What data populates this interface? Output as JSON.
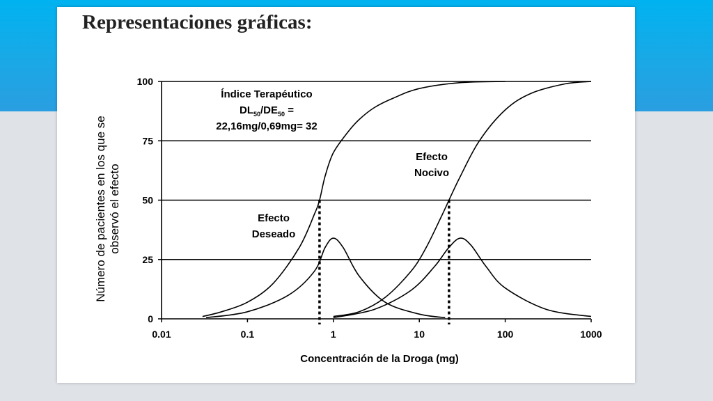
{
  "slide": {
    "title": "Representaciones gráficas:"
  },
  "colors": {
    "top_band": "#1aa8e6",
    "slide_background": "#ffffff",
    "page_background": "#dfe3e8",
    "ink": "#000000"
  },
  "chart_data": {
    "type": "line",
    "xscale": "log",
    "xlim": [
      0.01,
      1000
    ],
    "ylim": [
      0,
      100
    ],
    "xticks": [
      "0.01",
      "0.1",
      "1",
      "10",
      "100",
      "1000"
    ],
    "yticks": [
      "0",
      "25",
      "50",
      "75",
      "100"
    ],
    "xlabel": "Concentración de la Droga (mg)",
    "ylabel_lines": [
      "Número de pacientes en los que se",
      "observó el efecto"
    ],
    "grid": "horizontal",
    "annotations": {
      "index_line1": "Índice Terapéutico",
      "index_line2_main": "DL",
      "index_line2_sub": "50",
      "index_line2_mid": "/DE",
      "index_line2_sub2": "50",
      "index_line2_end": " =",
      "index_line3": "22,16mg/0,69mg= 32",
      "desired_line1": "Efecto",
      "desired_line2": "Deseado",
      "toxic_line1": "Efecto",
      "toxic_line2": "Nocivo"
    },
    "series": [
      {
        "kind": "cumulative",
        "label": "Efecto Deseado",
        "x": [
          0.03,
          0.05,
          0.1,
          0.2,
          0.4,
          0.6,
          0.69,
          0.8,
          1,
          1.5,
          2,
          3,
          5,
          10,
          30,
          100
        ],
        "y": [
          1,
          3,
          7,
          15,
          30,
          44,
          50,
          60,
          70,
          79,
          84,
          89,
          93,
          97,
          99.5,
          100
        ]
      },
      {
        "kind": "frequency",
        "label": "Efecto Deseado",
        "x": [
          0.033,
          0.1,
          0.3,
          0.6,
          0.8,
          1,
          1.3,
          2,
          4,
          10,
          20
        ],
        "y": [
          0.5,
          3,
          10,
          20,
          30,
          34,
          30,
          18,
          7,
          2,
          0.5
        ]
      },
      {
        "kind": "cumulative",
        "label": "Efecto Nocivo",
        "x": [
          1,
          2,
          4,
          8,
          12,
          18,
          22.16,
          30,
          50,
          100,
          200,
          500,
          1000
        ],
        "y": [
          1,
          3,
          9,
          20,
          30,
          43,
          50,
          60,
          75,
          88,
          95,
          99,
          100
        ]
      },
      {
        "kind": "frequency",
        "label": "Efecto Nocivo",
        "x": [
          1,
          3,
          8,
          15,
          22,
          30,
          40,
          60,
          100,
          300,
          1000
        ],
        "y": [
          0.5,
          4,
          12,
          22,
          30,
          34,
          31,
          22,
          13,
          4,
          1
        ]
      }
    ],
    "markers": [
      {
        "label": "DE50",
        "x": 0.69,
        "y": 50
      },
      {
        "label": "DL50",
        "x": 22.16,
        "y": 50
      }
    ]
  }
}
